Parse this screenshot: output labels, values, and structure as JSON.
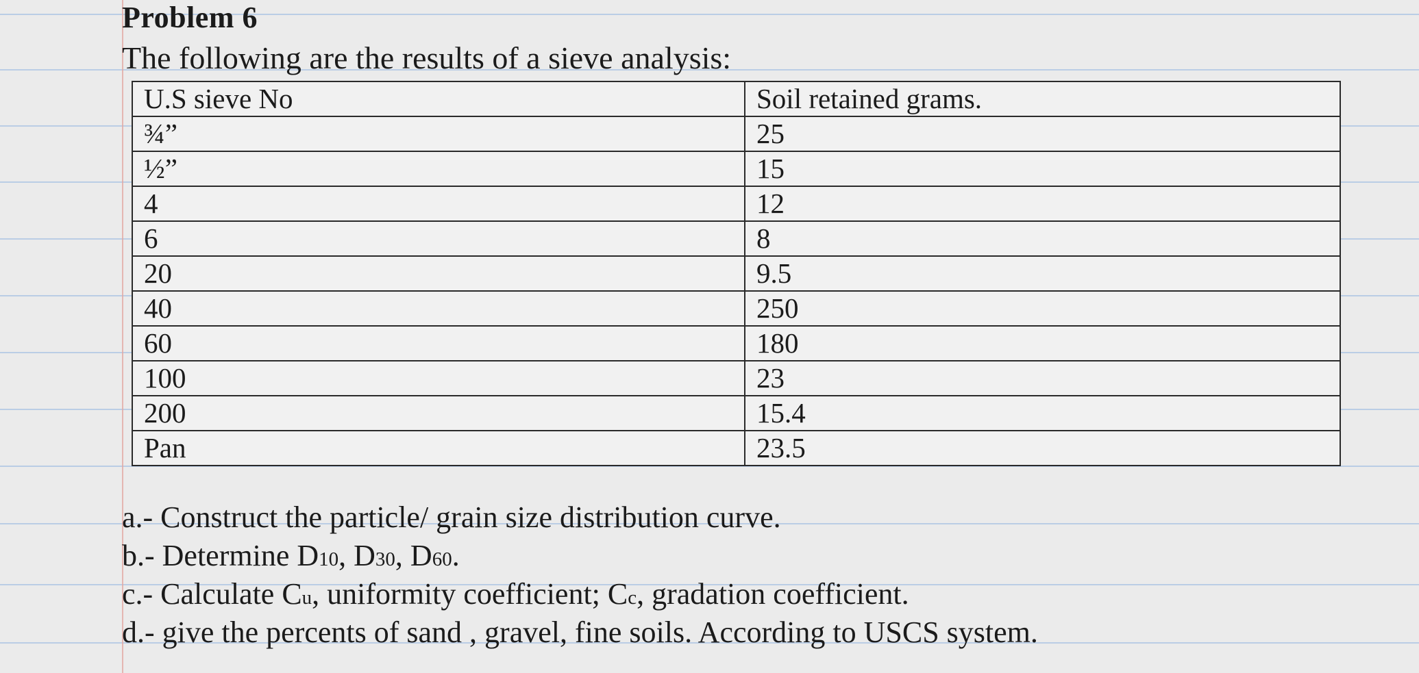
{
  "problem": {
    "title": "Problem 6",
    "intro": "The following are the results of a sieve analysis:"
  },
  "table": {
    "headers": [
      "U.S sieve No",
      "Soil retained grams."
    ],
    "rows": [
      [
        "¾”",
        "25"
      ],
      [
        "½”",
        "15"
      ],
      [
        "4",
        "12"
      ],
      [
        "6",
        "8"
      ],
      [
        "20",
        "9.5"
      ],
      [
        "40",
        "250"
      ],
      [
        "60",
        "180"
      ],
      [
        "100",
        "23"
      ],
      [
        "200",
        "15.4"
      ],
      [
        "Pan",
        "23.5"
      ]
    ]
  },
  "questions": {
    "a": "a.- Construct the particle/ grain size distribution curve.",
    "b": {
      "prefix": "b.- Determine D",
      "d10_sub": "10",
      "sep1": ", D",
      "d30_sub": "30",
      "sep2": ", D",
      "d60_sub": "60",
      "end": "."
    },
    "c": {
      "prefix": "c.- Calculate C",
      "cu_sub": "u",
      "mid": ", uniformity coefficient; C",
      "cc_sub": "c",
      "end": ", gradation coefficient."
    },
    "d": "d.- give the percents of sand , gravel, fine soils. According to USCS system."
  }
}
